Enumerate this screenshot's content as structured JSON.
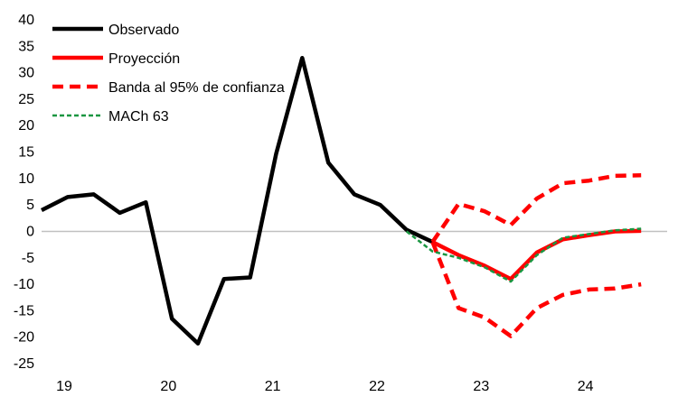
{
  "chart_data": {
    "type": "line",
    "title": "",
    "xlabel": "",
    "ylabel": "",
    "ylim": [
      -25,
      40
    ],
    "yticks": [
      40,
      35,
      30,
      25,
      20,
      15,
      10,
      5,
      0,
      -5,
      -10,
      -15,
      -20,
      -25
    ],
    "xlim": [
      19,
      25
    ],
    "xticks": [
      19,
      20,
      21,
      22,
      23,
      24
    ],
    "zero_line": true,
    "grid": false,
    "legend_position": "top-left",
    "series": [
      {
        "name": "Observado",
        "color": "#000000",
        "style": "solid",
        "x": [
          19.0,
          19.25,
          19.5,
          19.75,
          20.0,
          20.25,
          20.5,
          20.75,
          21.0,
          21.25,
          21.5,
          21.75,
          22.0,
          22.25,
          22.5,
          22.75
        ],
        "y": [
          4.0,
          6.5,
          7.0,
          3.5,
          5.5,
          -16.5,
          -21.2,
          -9.0,
          -8.7,
          14.7,
          32.8,
          13.0,
          7.0,
          5.0,
          0.3,
          -2.0
        ]
      },
      {
        "name": "Proyección",
        "color": "#ff0000",
        "style": "solid",
        "x": [
          22.75,
          23.0,
          23.25,
          23.5,
          23.75,
          24.0,
          24.25,
          24.5,
          24.75
        ],
        "y": [
          -2.0,
          -4.5,
          -6.5,
          -9.0,
          -4.0,
          -1.5,
          -0.7,
          0.0,
          0.1
        ]
      },
      {
        "name": "Banda al 95% de confianza",
        "color": "#ff0000",
        "style": "dashed",
        "bands": [
          {
            "x": [
              22.75,
              23.0,
              23.25,
              23.5,
              23.75,
              24.0,
              24.25,
              24.5,
              24.75
            ],
            "y": [
              -2.0,
              5.2,
              3.8,
              1.2,
              6.2,
              9.1,
              9.6,
              10.5,
              10.6
            ]
          },
          {
            "x": [
              22.75,
              23.0,
              23.25,
              23.5,
              23.75,
              24.0,
              24.25,
              24.5,
              24.75
            ],
            "y": [
              -2.0,
              -14.5,
              -16.3,
              -19.8,
              -14.5,
              -12.0,
              -11.0,
              -10.8,
              -10.0
            ]
          }
        ]
      },
      {
        "name": "MACh 63",
        "color": "#1a9641",
        "style": "dotted",
        "x": [
          22.5,
          22.75,
          23.0,
          23.25,
          23.5,
          23.75,
          24.0,
          24.25,
          24.5,
          24.75
        ],
        "y": [
          0.0,
          -3.8,
          -5.0,
          -6.8,
          -9.5,
          -4.5,
          -1.2,
          -0.5,
          0.2,
          0.5
        ]
      }
    ]
  }
}
